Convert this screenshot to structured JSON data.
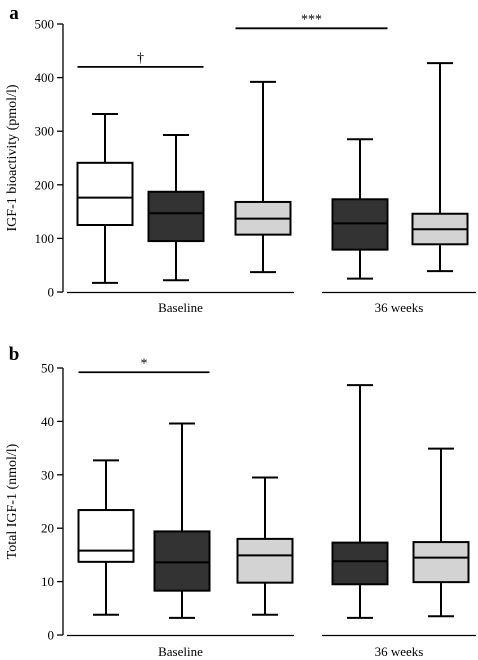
{
  "chart_data": [
    {
      "type": "boxplot",
      "panel_label": "a",
      "ylabel": "IGF-1 bioactivity (pmol/l)",
      "ylim": [
        0,
        500
      ],
      "yticks": [
        0,
        100,
        200,
        300,
        400,
        500
      ],
      "groups": [
        "Baseline",
        "36 weeks"
      ],
      "box_fills": [
        "#ffffff",
        "#333333",
        "#d3d3d3"
      ],
      "boxes": [
        {
          "group": "Baseline",
          "fill": "#ffffff",
          "min": 17,
          "q1": 125,
          "median": 176,
          "q3": 241,
          "max": 332
        },
        {
          "group": "Baseline",
          "fill": "#333333",
          "min": 22,
          "q1": 95,
          "median": 147,
          "q3": 187,
          "max": 293
        },
        {
          "group": "Baseline",
          "fill": "#d3d3d3",
          "min": 37,
          "q1": 107,
          "median": 137,
          "q3": 168,
          "max": 392
        },
        {
          "group": "36 weeks",
          "fill": "#333333",
          "min": 25,
          "q1": 79,
          "median": 128,
          "q3": 173,
          "max": 285
        },
        {
          "group": "36 weeks",
          "fill": "#d3d3d3",
          "min": 39,
          "q1": 89,
          "median": 117,
          "q3": 146,
          "max": 427
        }
      ],
      "significance": [
        {
          "label": "†",
          "from_box": 0,
          "to_box": 1,
          "y": 420
        },
        {
          "label": "***",
          "from_box": 2,
          "to_box": 3,
          "y": 492
        }
      ]
    },
    {
      "type": "boxplot",
      "panel_label": "b",
      "ylabel": "Total IGF-1 (nmol/l)",
      "ylim": [
        0,
        50
      ],
      "yticks": [
        0,
        10,
        20,
        30,
        40,
        50
      ],
      "groups": [
        "Baseline",
        "36 weeks"
      ],
      "box_fills": [
        "#ffffff",
        "#333333",
        "#d3d3d3"
      ],
      "boxes": [
        {
          "group": "Baseline",
          "fill": "#ffffff",
          "min": 3.8,
          "q1": 13.7,
          "median": 15.8,
          "q3": 23.4,
          "max": 32.7
        },
        {
          "group": "Baseline",
          "fill": "#333333",
          "min": 3.2,
          "q1": 8.3,
          "median": 13.6,
          "q3": 19.4,
          "max": 39.6
        },
        {
          "group": "Baseline",
          "fill": "#d3d3d3",
          "min": 3.8,
          "q1": 9.8,
          "median": 14.9,
          "q3": 18.0,
          "max": 29.5
        },
        {
          "group": "36 weeks",
          "fill": "#333333",
          "min": 3.2,
          "q1": 9.5,
          "median": 13.8,
          "q3": 17.3,
          "max": 46.8
        },
        {
          "group": "36 weeks",
          "fill": "#d3d3d3",
          "min": 3.5,
          "q1": 9.9,
          "median": 14.5,
          "q3": 17.4,
          "max": 34.9
        }
      ],
      "significance": [
        {
          "label": "*",
          "from_box": 0,
          "to_box": 1,
          "y": 49.2
        }
      ]
    }
  ]
}
